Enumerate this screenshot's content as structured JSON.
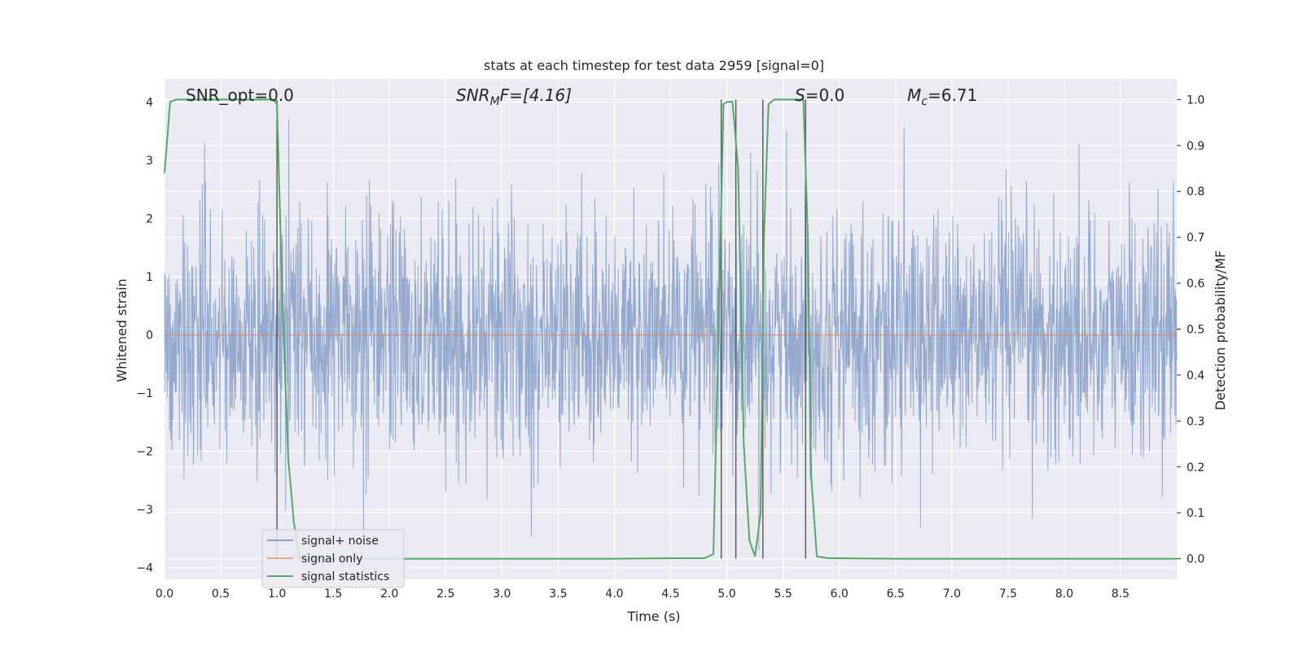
{
  "chart_data": {
    "type": "line",
    "title": "stats at each timestep for test data 2959 [signal=0]",
    "xlabel": "Time (s)",
    "ylabel": "Whitened strain",
    "ylabel_right": "Detection probability/MF",
    "xlim": [
      0,
      9
    ],
    "ylim": [
      -4.2,
      4.4
    ],
    "ylim_right": [
      -0.045,
      1.045
    ],
    "x_ticks": [
      "0.0",
      "0.5",
      "1.0",
      "1.5",
      "2.0",
      "2.5",
      "3.0",
      "3.5",
      "4.0",
      "4.5",
      "5.0",
      "5.5",
      "6.0",
      "6.5",
      "7.0",
      "7.5",
      "8.0",
      "8.5"
    ],
    "y_ticks": [
      "−4",
      "−3",
      "−2",
      "−1",
      "0",
      "1",
      "2",
      "3",
      "4"
    ],
    "y_ticks_right": [
      "0.0",
      "0.1",
      "0.2",
      "0.3",
      "0.4",
      "0.5",
      "0.6",
      "0.7",
      "0.8",
      "0.9",
      "1.0"
    ],
    "annotations": {
      "snr_opt": "SNR_opt=0.0",
      "snr_mf_sym": "SNR",
      "snr_mf_sub": "M",
      "snr_mf_rest": "F=[4.16]",
      "s_sym": "S",
      "s_rest": "=0.0",
      "mc_sym": "M",
      "mc_sub": "c",
      "mc_rest": "=6.71"
    },
    "series": [
      {
        "name": "signal+ noise",
        "color": "#4c72b0",
        "description": "whitened noise"
      },
      {
        "name": "signal only",
        "color": "#dd8452",
        "value": 0
      },
      {
        "name": "signal statistics",
        "color": "#55a868",
        "x": [
          0.0,
          0.05,
          0.1,
          0.2,
          0.5,
          0.9,
          0.97,
          1.0,
          1.05,
          1.1,
          1.15,
          1.2,
          1.5,
          2.0,
          3.0,
          4.0,
          4.5,
          4.8,
          4.88,
          4.93,
          4.97,
          5.0,
          5.05,
          5.1,
          5.15,
          5.2,
          5.25,
          5.3,
          5.33,
          5.37,
          5.42,
          5.5,
          5.6,
          5.68,
          5.72,
          5.75,
          5.8,
          5.9,
          6.0,
          6.5,
          7.0,
          8.0,
          9.0
        ],
        "y": [
          0.84,
          0.995,
          1.0,
          1.0,
          1.0,
          1.0,
          1.0,
          0.99,
          0.55,
          0.22,
          0.08,
          0.0,
          0.0,
          0.0,
          0.0,
          0.0,
          0.001,
          0.001,
          0.01,
          0.55,
          0.99,
          0.995,
          0.995,
          0.85,
          0.25,
          0.04,
          0.005,
          0.1,
          0.7,
          0.99,
          1.0,
          1.0,
          1.0,
          1.0,
          0.7,
          0.18,
          0.005,
          0.001,
          0.001,
          0.0,
          0.0,
          0.0,
          0.0
        ]
      }
    ],
    "vertical_lines_x": [
      1.0,
      4.95,
      5.08,
      5.32,
      5.7
    ],
    "legend_position": "lower-left",
    "grid": true,
    "colors": {
      "background": "#eaeaf2",
      "grid": "#ffffff",
      "vline": "#555555"
    }
  }
}
